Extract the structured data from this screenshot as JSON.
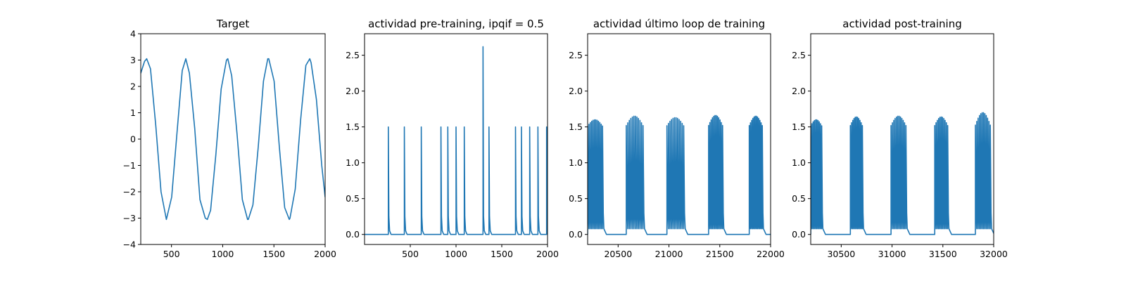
{
  "chart_data": [
    {
      "type": "line",
      "title": "Target",
      "xlim": [
        200,
        2000
      ],
      "ylim": [
        -4,
        4
      ],
      "xticks": [
        500,
        1000,
        1500,
        2000
      ],
      "yticks": [
        -4,
        -3,
        -2,
        -1,
        0,
        1,
        2,
        3,
        4
      ],
      "xtick_labels": [
        "500",
        "1000",
        "1500",
        "2000"
      ],
      "ytick_labels": [
        "−4",
        "−3",
        "−2",
        "−1",
        "0",
        "1",
        "2",
        "3",
        "4"
      ],
      "series": [
        {
          "x": [
            200,
            237,
            258,
            295,
            347,
            398,
            450,
            502,
            553,
            605,
            640,
            675,
            727,
            778,
            830,
            850,
            882,
            933,
            985,
            1037,
            1050,
            1088,
            1140,
            1192,
            1243,
            1250,
            1295,
            1347,
            1398,
            1440,
            1450,
            1502,
            1553,
            1605,
            1650,
            1657,
            1708,
            1760,
            1812,
            1850,
            1863,
            1915,
            1967,
            2000
          ],
          "y": [
            2.5,
            2.95,
            3.05,
            2.67,
            0.5,
            -2.0,
            -3.05,
            -2.2,
            0.2,
            2.6,
            3.05,
            2.5,
            0.4,
            -2.3,
            -3.0,
            -3.05,
            -2.7,
            -0.6,
            1.9,
            3.0,
            3.05,
            2.4,
            0.2,
            -2.3,
            -3.05,
            -3.05,
            -2.5,
            -0.3,
            2.2,
            3.05,
            3.05,
            2.2,
            -0.3,
            -2.6,
            -3.05,
            -3.0,
            -1.9,
            0.7,
            2.8,
            3.05,
            2.9,
            1.5,
            -1.0,
            -2.2
          ]
        }
      ]
    },
    {
      "type": "line",
      "title": "actividad pre-training, ipqif = 0.5",
      "xlim": [
        0,
        2000
      ],
      "ylim": [
        -0.14,
        2.8
      ],
      "xticks": [
        500,
        1000,
        1500,
        2000
      ],
      "yticks": [
        0.0,
        0.5,
        1.0,
        1.5,
        2.0,
        2.5
      ],
      "xtick_labels": [
        "500",
        "1000",
        "1500",
        "2000"
      ],
      "ytick_labels": [
        "0.0",
        "0.5",
        "1.0",
        "1.5",
        "2.0",
        "2.5"
      ],
      "series": [
        {
          "spikes_x": [
            260,
            435,
            620,
            835,
            910,
            1000,
            1090,
            1295,
            1360,
            1650,
            1715,
            1805,
            1895,
            1990
          ],
          "spikes_y": [
            1.5,
            1.5,
            1.5,
            1.5,
            1.5,
            1.5,
            1.5,
            2.62,
            1.5,
            1.5,
            1.5,
            1.5,
            1.5,
            1.5
          ],
          "baseline": 0.0
        }
      ]
    },
    {
      "type": "line",
      "title": "actividad último loop de training",
      "xlim": [
        20200,
        22000
      ],
      "ylim": [
        -0.14,
        2.8
      ],
      "xticks": [
        20500,
        21000,
        21500,
        22000
      ],
      "yticks": [
        0.0,
        0.5,
        1.0,
        1.5,
        2.0,
        2.5
      ],
      "xtick_labels": [
        "20500",
        "21000",
        "21500",
        "22000"
      ],
      "ytick_labels": [
        "0.0",
        "0.5",
        "1.0",
        "1.5",
        "2.0",
        "2.5"
      ],
      "series": [
        {
          "bursts": [
            {
              "start": 20200,
              "end": 20360,
              "n": 12,
              "peak": 1.6
            },
            {
              "start": 20580,
              "end": 20760,
              "n": 12,
              "peak": 1.65
            },
            {
              "start": 20980,
              "end": 21160,
              "n": 12,
              "peak": 1.63
            },
            {
              "start": 21390,
              "end": 21540,
              "n": 12,
              "peak": 1.66
            },
            {
              "start": 21790,
              "end": 21930,
              "n": 12,
              "peak": 1.65
            }
          ],
          "baseline": 0.0
        }
      ]
    },
    {
      "type": "line",
      "title": "actividad post-training",
      "xlim": [
        30200,
        32000
      ],
      "ylim": [
        -0.14,
        2.8
      ],
      "xticks": [
        30500,
        31000,
        31500,
        32000
      ],
      "yticks": [
        0.0,
        0.5,
        1.0,
        1.5,
        2.0,
        2.5
      ],
      "xtick_labels": [
        "30500",
        "31000",
        "31500",
        "32000"
      ],
      "ytick_labels": [
        "0.0",
        "0.5",
        "1.0",
        "1.5",
        "2.0",
        "2.5"
      ],
      "series": [
        {
          "bursts": [
            {
              "start": 30200,
              "end": 30320,
              "n": 10,
              "peak": 1.6
            },
            {
              "start": 30590,
              "end": 30720,
              "n": 11,
              "peak": 1.64
            },
            {
              "start": 30990,
              "end": 31150,
              "n": 12,
              "peak": 1.65
            },
            {
              "start": 31420,
              "end": 31560,
              "n": 11,
              "peak": 1.64
            },
            {
              "start": 31820,
              "end": 31980,
              "n": 12,
              "peak": 1.7
            }
          ],
          "baseline": 0.0
        }
      ]
    }
  ],
  "style": {
    "line_color": "#1f77b4",
    "axes_color": "#000000"
  }
}
